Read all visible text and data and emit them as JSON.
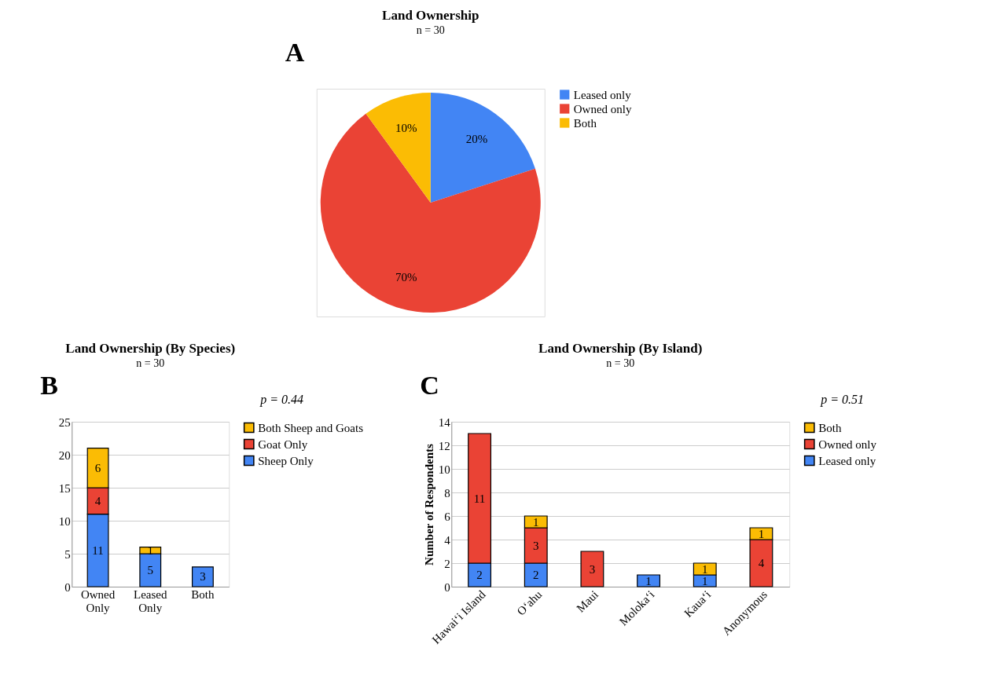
{
  "chart_data": [
    {
      "type": "pie",
      "title": "Land Ownership",
      "subtitle": "n = 30",
      "categories": [
        "Leased only",
        "Owned only",
        "Both"
      ],
      "values": [
        20,
        70,
        10
      ],
      "colors": [
        "#4285f4",
        "#ea4335",
        "#fbbc04"
      ],
      "value_labels": [
        "20%",
        "70%",
        "10%"
      ],
      "legend": "right",
      "annotations": [
        "A"
      ]
    },
    {
      "type": "bar",
      "stacked": true,
      "title": "Land Ownership (By Species)",
      "subtitle": "n = 30",
      "categories": [
        "Owned Only",
        "Leased Only",
        "Both"
      ],
      "series": [
        {
          "name": "Sheep Only",
          "color": "#4285f4",
          "values": [
            11,
            5,
            3
          ]
        },
        {
          "name": "Goat Only",
          "color": "#ea4335",
          "values": [
            4,
            null,
            null
          ]
        },
        {
          "name": "Both Sheep and Goats",
          "color": "#fbbc04",
          "values": [
            6,
            1,
            null
          ]
        }
      ],
      "ylim": [
        0,
        25
      ],
      "yticks": [
        0,
        5,
        10,
        15,
        20,
        25
      ],
      "grid": "y",
      "data_labels": true,
      "legend": "right",
      "annotations": [
        "B",
        "p = 0.44"
      ]
    },
    {
      "type": "bar",
      "stacked": true,
      "title": "Land Ownership (By Island)",
      "subtitle": "n = 30",
      "ylabel": "Number of Respondents",
      "categories": [
        "Hawai‘i Island",
        "O‘ahu",
        "Maui",
        "Moloka‘i",
        "Kaua‘i",
        "Anonymous"
      ],
      "series": [
        {
          "name": "Leased only",
          "color": "#4285f4",
          "values": [
            2,
            2,
            null,
            1,
            1,
            null
          ]
        },
        {
          "name": "Owned only",
          "color": "#ea4335",
          "values": [
            11,
            3,
            3,
            null,
            null,
            4
          ]
        },
        {
          "name": "Both",
          "color": "#fbbc04",
          "values": [
            null,
            1,
            null,
            null,
            1,
            1
          ]
        }
      ],
      "ylim": [
        0,
        14
      ],
      "yticks": [
        0,
        2,
        4,
        6,
        8,
        10,
        12,
        14
      ],
      "grid": "y",
      "data_labels": true,
      "legend": "right",
      "annotations": [
        "C",
        "p = 0.51"
      ]
    }
  ]
}
